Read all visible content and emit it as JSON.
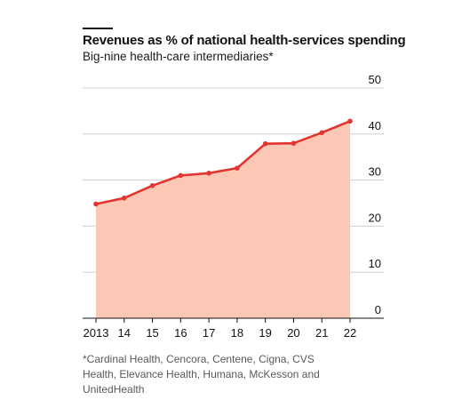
{
  "chart_data": {
    "type": "area",
    "title": "Revenues as % of national health-services spending",
    "subtitle": "Big-nine health-care intermediaries*",
    "categories": [
      "2013",
      "14",
      "15",
      "16",
      "17",
      "18",
      "19",
      "20",
      "21",
      "22"
    ],
    "series": [
      {
        "values": [
          24.8,
          26.1,
          28.8,
          31.0,
          31.5,
          32.6,
          37.9,
          38.0,
          40.3,
          42.8
        ]
      }
    ],
    "ylim": [
      0,
      50
    ],
    "yticks": [
      0,
      10,
      20,
      30,
      40,
      50
    ],
    "y_axis_side": "right",
    "grid": true,
    "colors": {
      "line": "#e3342f",
      "fill": "#fbc8b6",
      "grid": "#cfcfcf"
    },
    "footnote": "*Cardinal Health, Cencora, Centene, Cigna, CVS Health, Elevance Health, Humana, McKesson and UnitedHealth"
  }
}
